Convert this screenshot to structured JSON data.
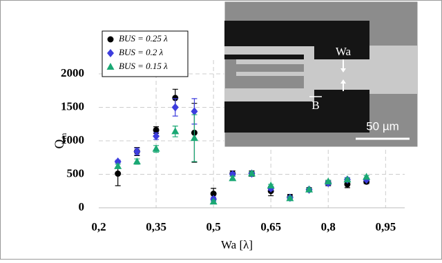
{
  "chart_data": {
    "type": "scatter",
    "x_label": "Wa [λ]",
    "y_label": "Q",
    "y_label_sub": "m",
    "x": [
      0.25,
      0.3,
      0.35,
      0.4,
      0.45,
      0.5,
      0.55,
      0.6,
      0.65,
      0.7,
      0.75,
      0.8,
      0.85,
      0.9
    ],
    "series": [
      {
        "name": "BUS = 0.25 λ",
        "color": "#000000",
        "marker": "circle",
        "values": [
          510,
          840,
          1160,
          1640,
          1120,
          210,
          510,
          510,
          250,
          160,
          270,
          370,
          350,
          390
        ],
        "errors": [
          180,
          60,
          50,
          130,
          440,
          80,
          40,
          40,
          70,
          40,
          30,
          40,
          50,
          30
        ]
      },
      {
        "name": "BUS = 0.2 λ",
        "color": "#3d3dde",
        "marker": "diamond",
        "values": [
          690,
          840,
          1070,
          1500,
          1440,
          130,
          500,
          510,
          290,
          150,
          270,
          370,
          420,
          420
        ],
        "errors": [
          20,
          50,
          50,
          130,
          190,
          30,
          30,
          30,
          30,
          20,
          20,
          30,
          30,
          20
        ]
      },
      {
        "name": "BUS = 0.15 λ",
        "color": "#1aa874",
        "marker": "triangle",
        "values": [
          620,
          690,
          880,
          1140,
          1040,
          90,
          440,
          510,
          330,
          140,
          270,
          390,
          420,
          460
        ],
        "errors": [
          30,
          40,
          50,
          80,
          350,
          20,
          30,
          30,
          20,
          20,
          20,
          20,
          20,
          20
        ]
      }
    ],
    "xlim": [
      0.2,
      1.0
    ],
    "ylim": [
      0,
      2000
    ],
    "xticks": [
      {
        "value": 0.2,
        "label": "0,2"
      },
      {
        "value": 0.35,
        "label": "0,35"
      },
      {
        "value": 0.5,
        "label": "0,5"
      },
      {
        "value": 0.65,
        "label": "0,65"
      },
      {
        "value": 0.8,
        "label": "0,8"
      },
      {
        "value": 0.95,
        "label": "0,95"
      }
    ],
    "yticks": [
      0,
      500,
      1000,
      1500,
      2000
    ],
    "grid": true,
    "legend": "upper left"
  },
  "inset": {
    "labels": [
      "Wa",
      "B",
      "50 µm"
    ]
  }
}
